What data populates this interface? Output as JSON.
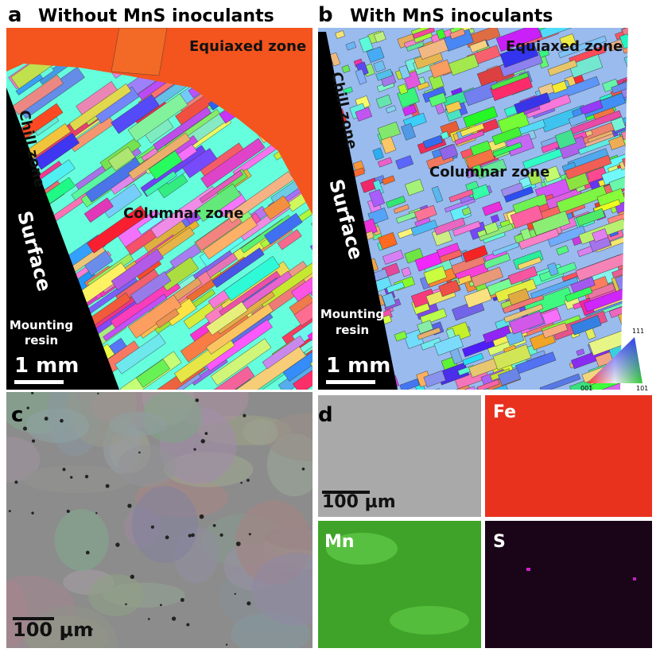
{
  "panels": {
    "a": {
      "label": "a",
      "title": "Without MnS inoculants",
      "equiaxed": "Equiaxed zone",
      "chill": "Chill zone",
      "columnar": "Columnar zone",
      "surface": "Surface",
      "resin": [
        "Mounting",
        "resin"
      ],
      "scale": "1 mm"
    },
    "b": {
      "label": "b",
      "title": "With MnS inoculants",
      "equiaxed": "Equiaxed zone",
      "chill": "Chill zone",
      "columnar": "Columnar zone",
      "surface": "Surface",
      "resin": [
        "Mounting",
        "resin"
      ],
      "scale": "1 mm",
      "ipf": [
        "111",
        "001",
        "101"
      ]
    },
    "c": {
      "label": "c",
      "scale": "100 µm"
    },
    "d": {
      "label": "d",
      "scale": "100 µm",
      "maps": [
        "Fe",
        "Mn",
        "S"
      ]
    }
  }
}
